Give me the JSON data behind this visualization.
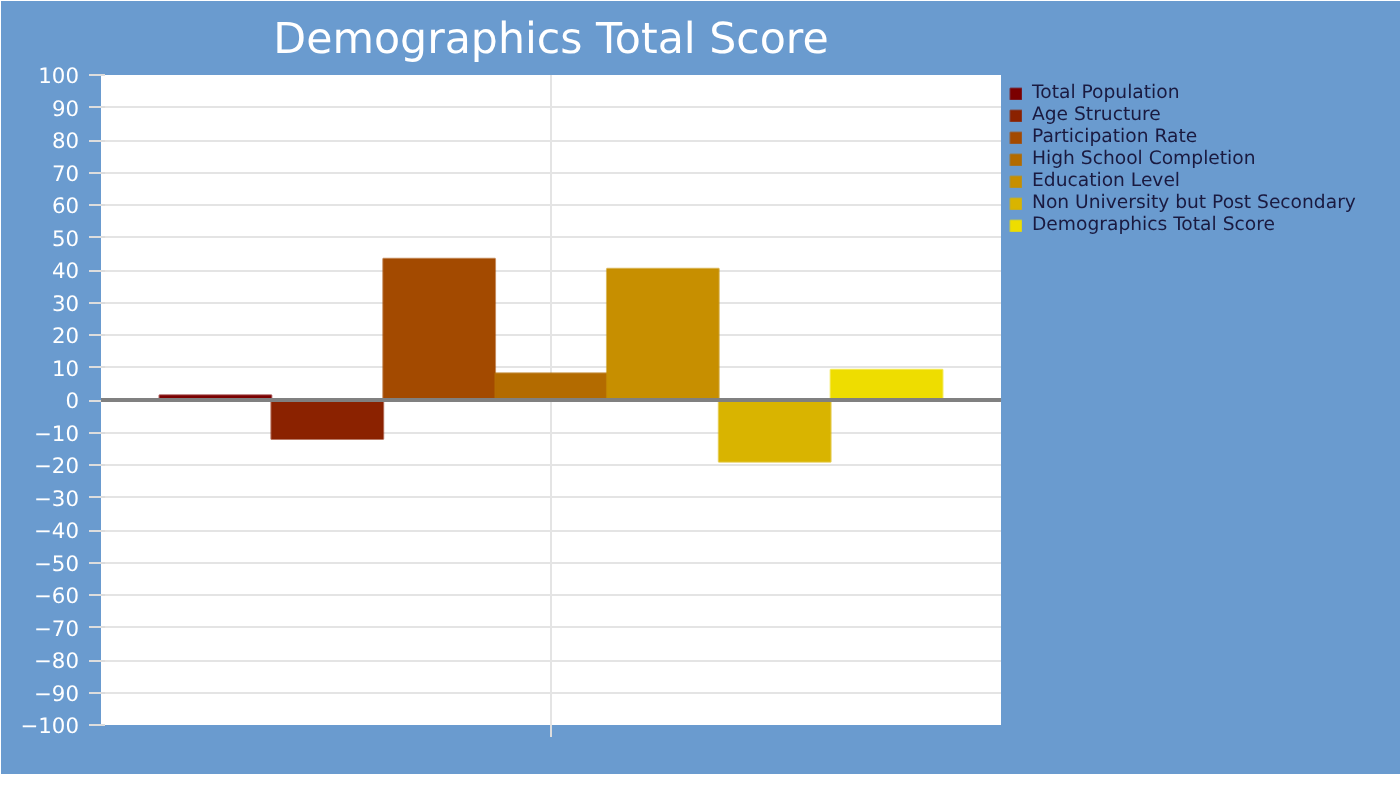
{
  "chart_data": {
    "type": "bar",
    "title": "Demographics Total Score",
    "categories": [
      null
    ],
    "series": [
      {
        "name": "Total Population",
        "color": "#7b0000",
        "values": [
          1.5
        ]
      },
      {
        "name": "Age Structure",
        "color": "#8b2200",
        "values": [
          -12
        ]
      },
      {
        "name": "Participation Rate",
        "color": "#a34a00",
        "values": [
          43.5
        ]
      },
      {
        "name": "High School Completion",
        "color": "#b36b00",
        "values": [
          8.2
        ]
      },
      {
        "name": "Education Level",
        "color": "#c78f00",
        "values": [
          40.4
        ]
      },
      {
        "name": "Non University but Post Secondary",
        "color": "#d9b400",
        "values": [
          -19
        ]
      },
      {
        "name": "Demographics Total Score",
        "color": "#eedd00",
        "values": [
          9.3
        ]
      }
    ],
    "ylim": [
      -100,
      100
    ],
    "yticks": [
      -100,
      -90,
      -80,
      -70,
      -60,
      -50,
      -40,
      -30,
      -20,
      -10,
      0,
      10,
      20,
      30,
      40,
      50,
      60,
      70,
      80,
      90,
      100
    ],
    "ref_lines": [
      {
        "axis": "y",
        "value": 0,
        "color": "#808080"
      }
    ],
    "grid": true,
    "legend": "right"
  }
}
